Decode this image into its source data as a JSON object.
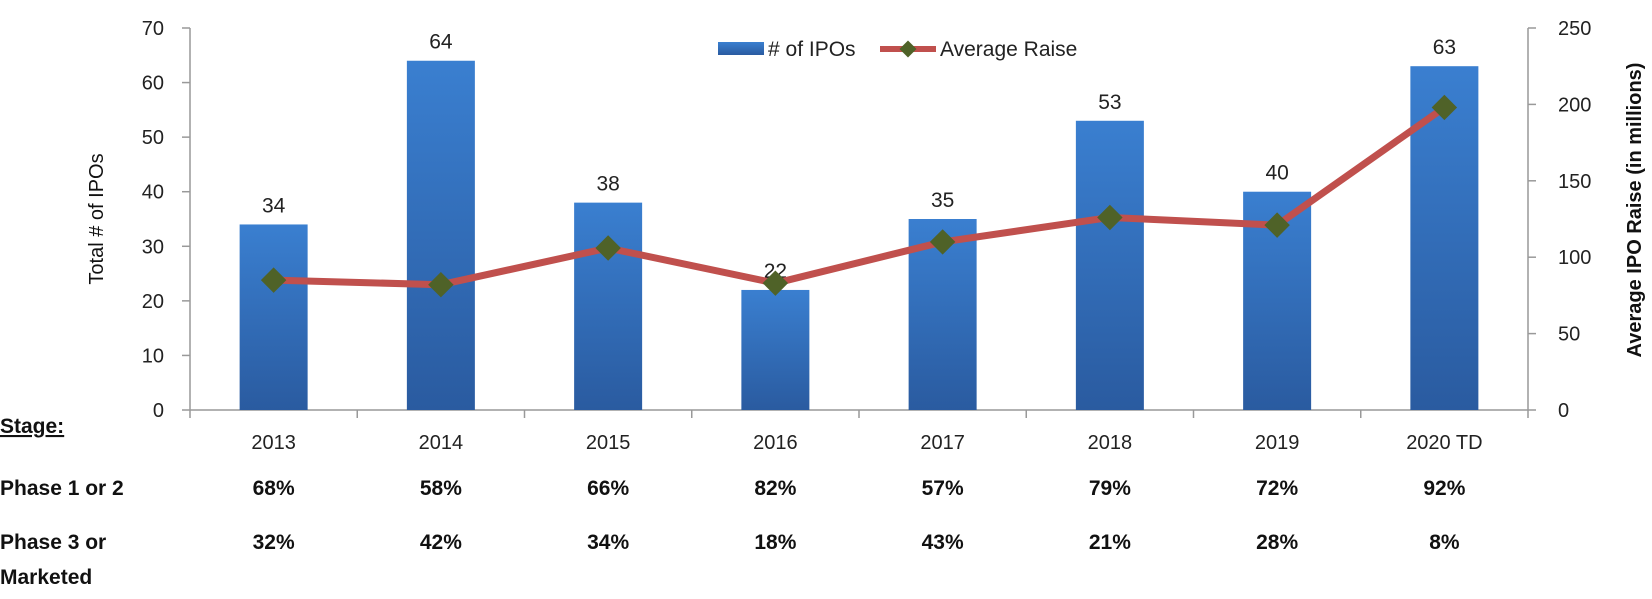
{
  "chart_data": {
    "type": "bar",
    "categories": [
      "2013",
      "2014",
      "2015",
      "2016",
      "2017",
      "2018",
      "2019",
      "2020 TD"
    ],
    "series": [
      {
        "name": "# of IPOs",
        "type": "bar",
        "axis": "left",
        "values": [
          34,
          64,
          38,
          22,
          35,
          53,
          40,
          63
        ],
        "data_labels": [
          "34",
          "64",
          "38",
          "22",
          "35",
          "53",
          "40",
          "63"
        ]
      },
      {
        "name": "Average Raise",
        "type": "line",
        "axis": "right",
        "values": [
          85,
          82,
          106,
          83,
          110,
          126,
          121,
          198
        ]
      }
    ],
    "ylabel": "Total # of IPOs",
    "y2label": "Average IPO Raise (in millions)",
    "ylim": [
      0,
      70
    ],
    "y2lim": [
      0,
      250
    ],
    "yticks": [
      "0",
      "10",
      "20",
      "30",
      "40",
      "50",
      "60",
      "70"
    ],
    "y2ticks": [
      "0",
      "50",
      "100",
      "150",
      "200",
      "250"
    ],
    "legend_position": "top-center",
    "grid": false,
    "colors": {
      "bar": "#3576c4",
      "bar_dark": "#2e5d9e",
      "line": "#c0504d",
      "marker": "#4f6228"
    }
  },
  "stage_table": {
    "stage_header": "Stage:",
    "rows": [
      {
        "label": "Phase 1 or 2",
        "values": [
          "68%",
          "58%",
          "66%",
          "82%",
          "57%",
          "79%",
          "72%",
          "92%"
        ]
      },
      {
        "label_lines": [
          "Phase 3 or",
          "Marketed"
        ],
        "values": [
          "32%",
          "42%",
          "34%",
          "18%",
          "43%",
          "21%",
          "28%",
          "8%"
        ]
      }
    ]
  }
}
